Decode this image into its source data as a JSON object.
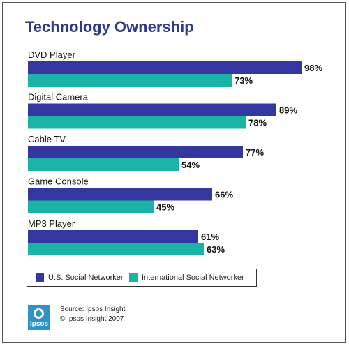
{
  "title": "Technology Ownership",
  "chart_data": {
    "type": "bar",
    "orientation": "horizontal",
    "title": "Technology Ownership",
    "categories": [
      "DVD Player",
      "Digital Camera",
      "Cable TV",
      "Game Console",
      "MP3 Player"
    ],
    "series": [
      {
        "name": "U.S. Social Networker",
        "values": [
          98,
          89,
          77,
          66,
          61
        ],
        "labels": [
          "98%",
          "89%",
          "77%",
          "66%",
          "61%"
        ],
        "color": "#3437a0"
      },
      {
        "name": "International Social Networker",
        "values": [
          73,
          78,
          54,
          45,
          63
        ],
        "labels": [
          "73%",
          "78%",
          "54%",
          "45%",
          "63%"
        ],
        "color": "#19b4a5"
      }
    ],
    "xlim": [
      0,
      100
    ],
    "grid": false,
    "legend": "bottom"
  },
  "source": {
    "line1": "Source: Ipsos Insight",
    "line2": "© Ipsos Insight 2007"
  },
  "logo_text": "Ipsos"
}
